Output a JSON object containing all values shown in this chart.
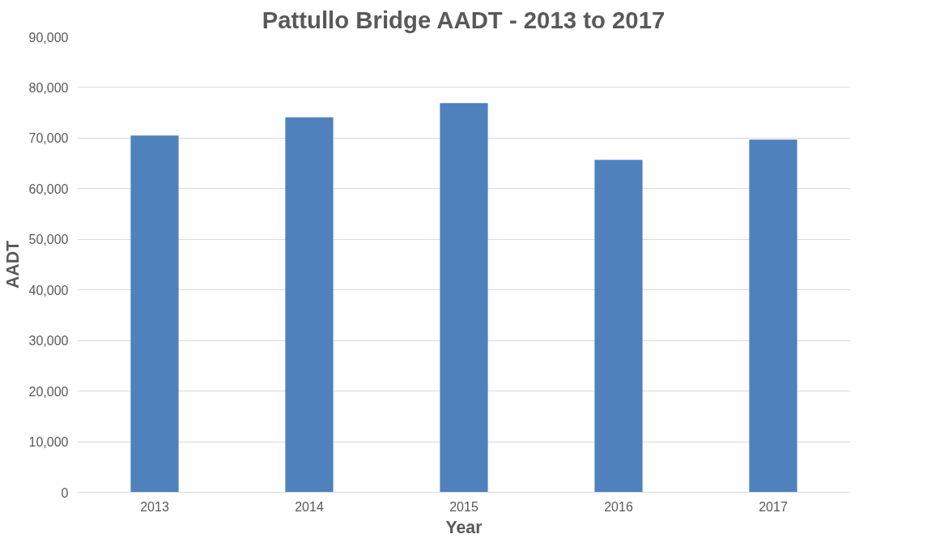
{
  "chart_data": {
    "type": "bar",
    "title": "Pattullo Bridge AADT - 2013 to 2017",
    "xlabel": "Year",
    "ylabel": "AADT",
    "categories": [
      "2013",
      "2014",
      "2015",
      "2016",
      "2017"
    ],
    "series": [
      {
        "color": "#4f81bd",
        "values": [
          70500,
          74100,
          76900,
          65700,
          69700
        ]
      }
    ],
    "ylim": [
      0,
      90000
    ],
    "yticks": [
      0,
      {
        "value": 10000,
        "label": "10,000"
      },
      {
        "value": 20000,
        "label": "20,000"
      },
      {
        "value": 30000,
        "label": "30,000"
      },
      {
        "value": 40000,
        "label": "40,000"
      },
      {
        "value": 50000,
        "label": "50,000"
      },
      {
        "value": 60000,
        "label": "60,000"
      },
      {
        "value": 70000,
        "label": "70,000"
      },
      {
        "value": 80000,
        "label": "80,000"
      },
      {
        "value": 90000,
        "label": "90,000"
      }
    ],
    "grid": "y"
  }
}
